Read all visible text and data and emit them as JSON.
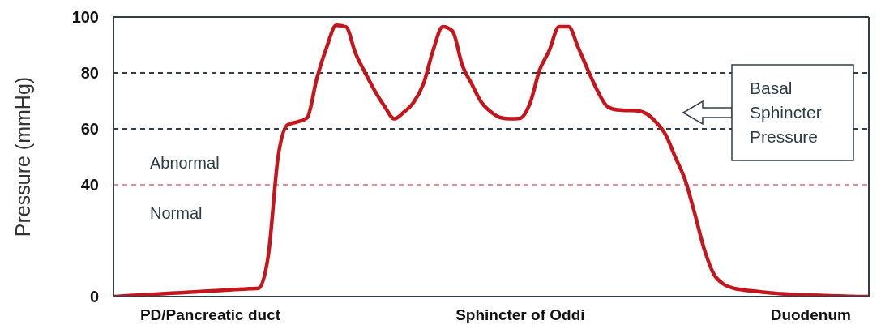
{
  "chart_data": {
    "type": "line",
    "ylabel": "Pressure (mmHg)",
    "categories": [
      null,
      null,
      null,
      null,
      null,
      null,
      null,
      null,
      null,
      null,
      "PD/Pancreatic duct",
      null,
      null,
      null,
      null,
      null,
      null,
      null,
      null,
      null,
      null,
      null,
      null,
      null,
      null,
      null,
      null,
      null,
      null,
      null,
      null,
      null,
      null,
      null,
      null,
      null,
      null,
      null,
      null,
      null,
      null,
      null,
      "Sphincter of Oddi",
      null,
      null,
      null,
      null,
      null,
      null,
      null,
      null,
      null,
      null,
      null,
      null,
      null,
      null,
      null,
      null,
      null,
      null,
      null,
      null,
      null,
      null,
      null,
      null,
      null,
      null,
      null,
      null,
      null,
      "Duodenum",
      null,
      null,
      null,
      null,
      null,
      null
    ],
    "series": [
      {
        "color": "#c4161c",
        "values": [
          0,
          0.2,
          0.4,
          0.6,
          0.8,
          1,
          1.2,
          1.4,
          1.6,
          1.8,
          2,
          2.2,
          2.4,
          2.6,
          2.8,
          3,
          15,
          50,
          61.5,
          62.5,
          64,
          78,
          89,
          97,
          96.5,
          87,
          80,
          73.5,
          68,
          63.6,
          66,
          69.5,
          76,
          88,
          96.5,
          95,
          83,
          76,
          69.5,
          66,
          64,
          63.6,
          63.8,
          69,
          81,
          88,
          96.5,
          96.5,
          89,
          81,
          73.5,
          68,
          66.8,
          66.6,
          66.5,
          65.5,
          62.5,
          58,
          50,
          42,
          30,
          17,
          8,
          4.5,
          3,
          2.4,
          2,
          1.6,
          1.3,
          1,
          0.8,
          0.6,
          0.5,
          0.4,
          0.3,
          0.2,
          0.1,
          0,
          0
        ]
      }
    ],
    "ylim": [
      0,
      100
    ],
    "yticks": [
      0,
      40,
      60,
      80,
      100
    ],
    "ref_lines": [
      {
        "axis": "y",
        "value": 80,
        "color": "#2f3e48",
        "line_style": "dashed"
      },
      {
        "axis": "y",
        "value": 60,
        "color": "#2f3e48",
        "line_style": "dashed"
      },
      {
        "axis": "y",
        "value": 40,
        "color": "#e3909a",
        "line_style": "dashed"
      }
    ],
    "annotations": [
      "Abnormal",
      "Normal",
      "Basal Sphincter Pressure"
    ],
    "legend": false,
    "grid": false
  }
}
